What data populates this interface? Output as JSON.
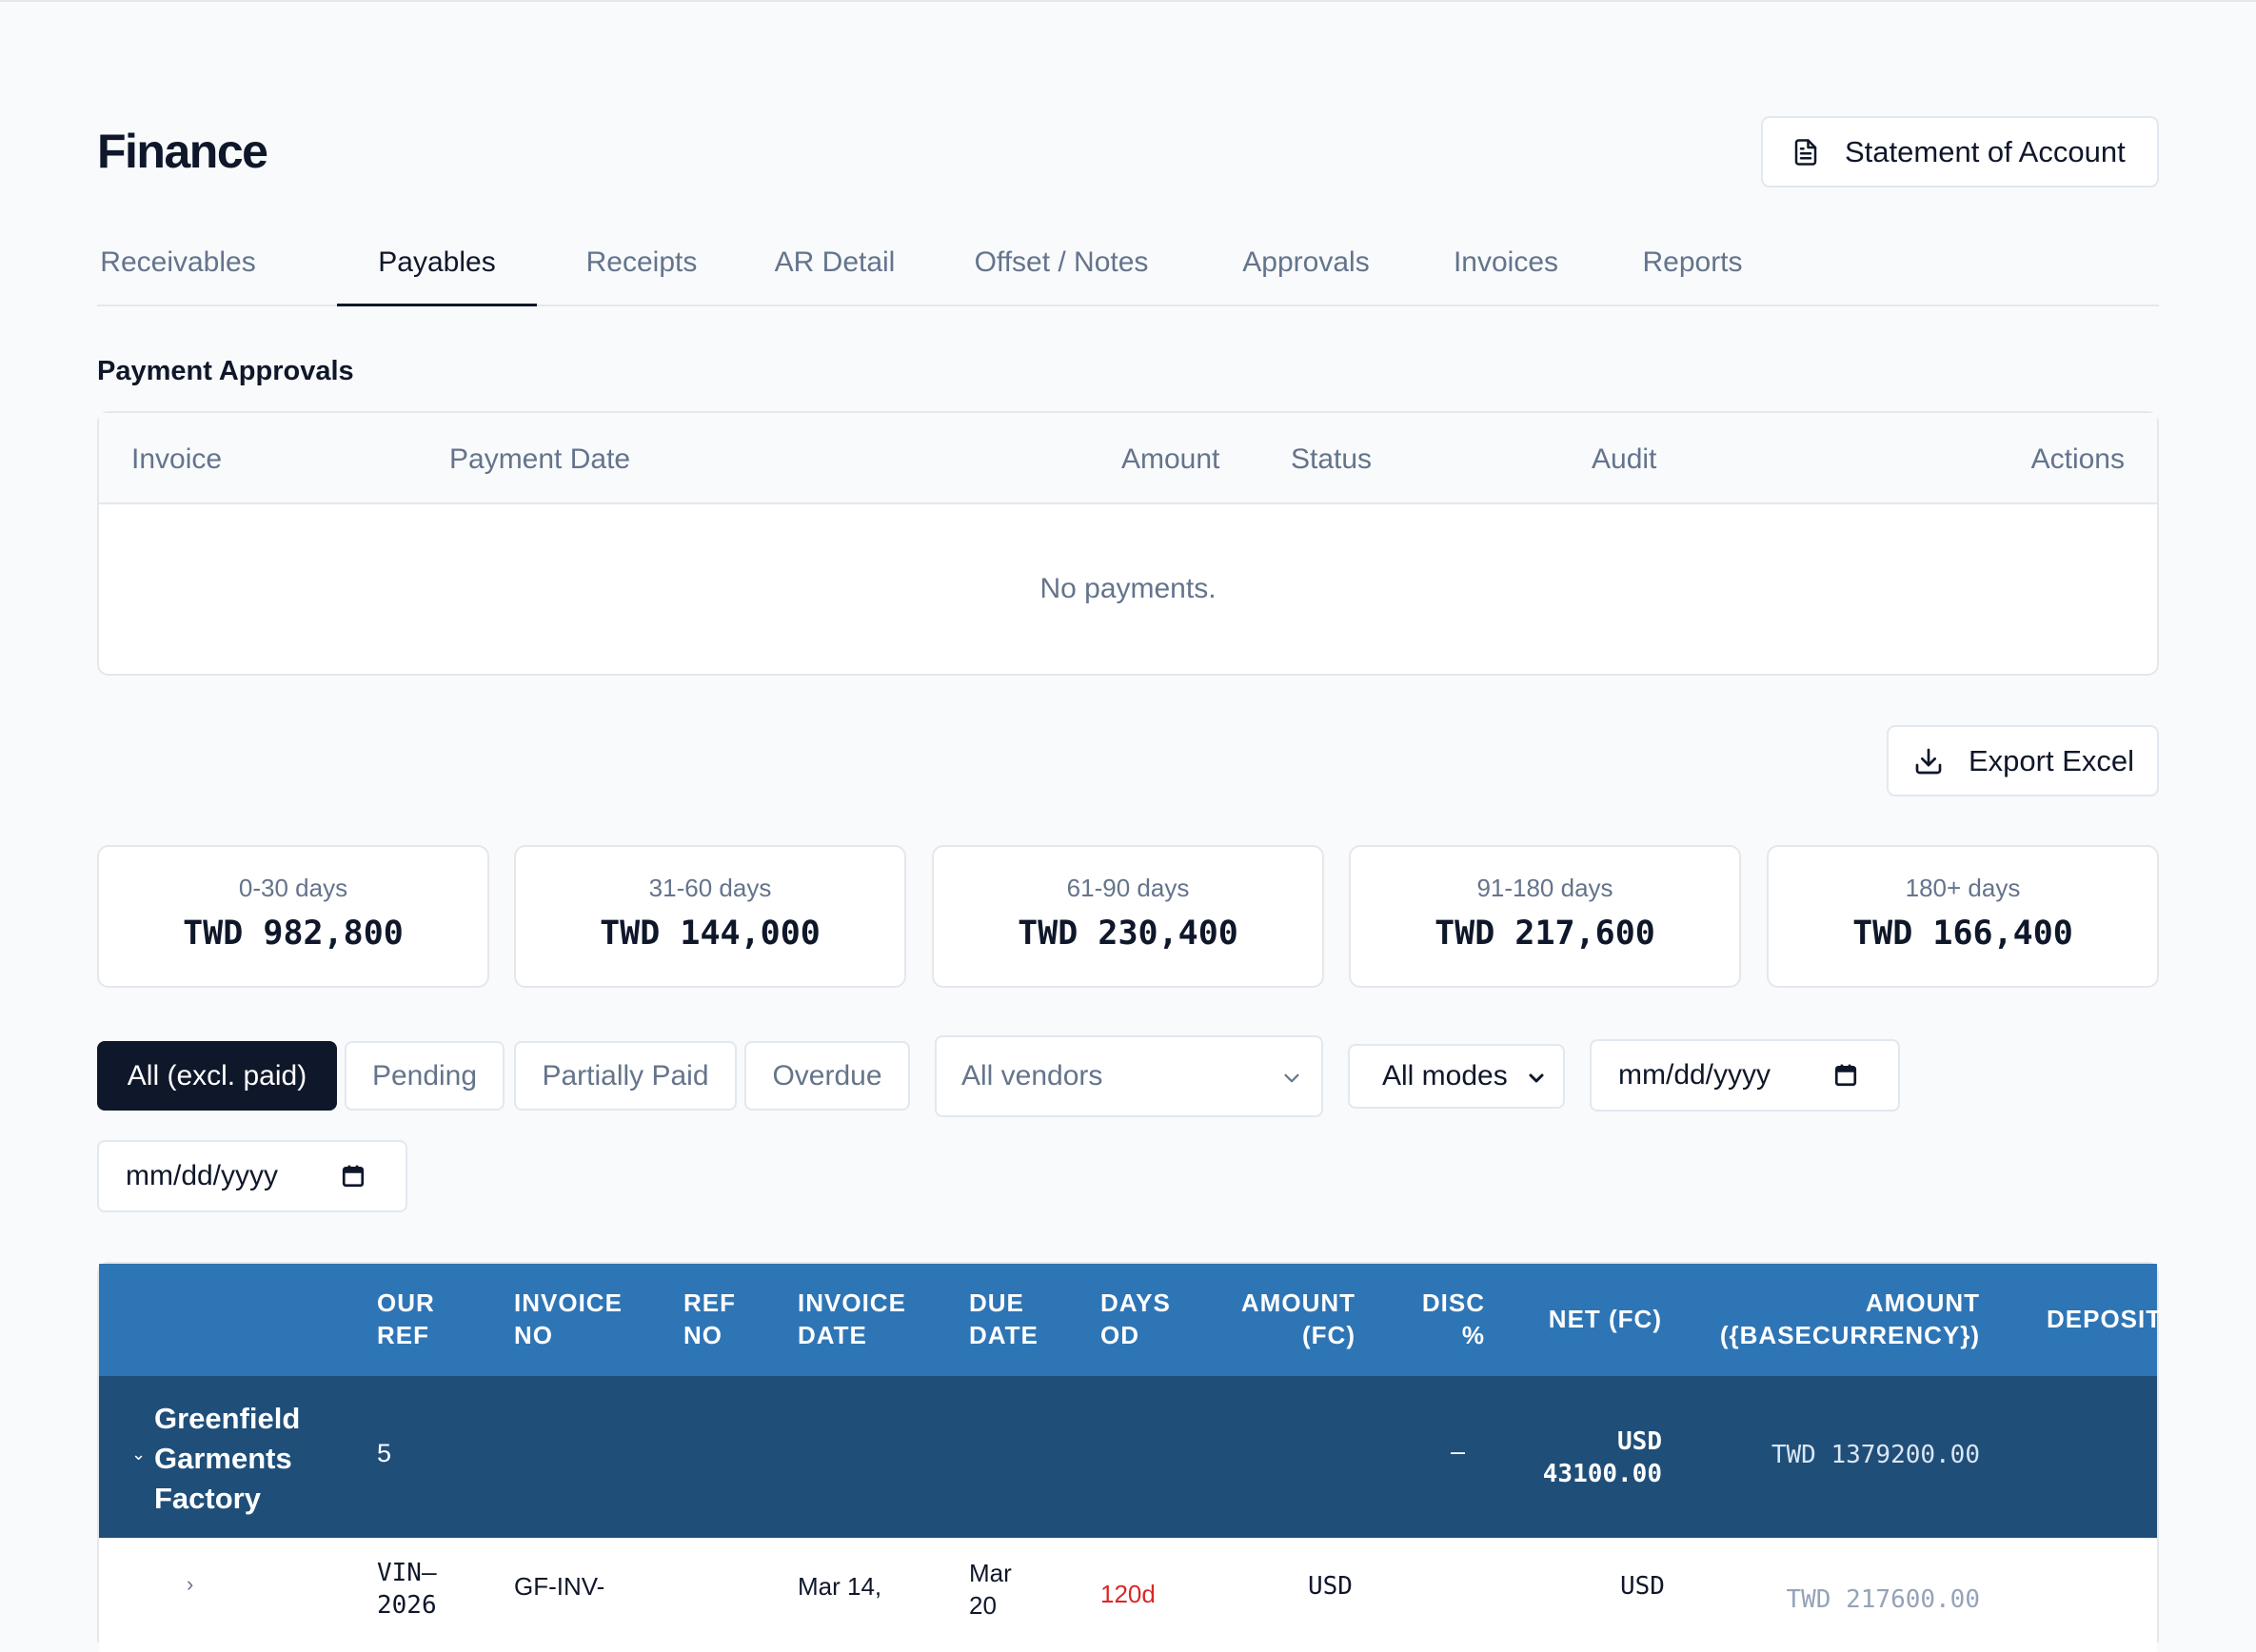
{
  "page": {
    "title": "Finance"
  },
  "header": {
    "statement_button": "Statement of Account"
  },
  "tabs": [
    {
      "label": "Receivables"
    },
    {
      "label": "Payables"
    },
    {
      "label": "Receipts"
    },
    {
      "label": "AR Detail"
    },
    {
      "label": "Offset / Notes"
    },
    {
      "label": "Approvals"
    },
    {
      "label": "Invoices"
    },
    {
      "label": "Reports"
    }
  ],
  "active_tab": "Payables",
  "payment_approvals": {
    "title": "Payment Approvals",
    "columns": [
      "Invoice",
      "Payment Date",
      "Amount",
      "Status",
      "Audit",
      "Actions"
    ],
    "empty_message": "No payments."
  },
  "export_button": "Export Excel",
  "aging_buckets": [
    {
      "label": "0-30 days",
      "value": "TWD 982,800"
    },
    {
      "label": "31-60 days",
      "value": "TWD 144,000"
    },
    {
      "label": "61-90 days",
      "value": "TWD 230,400"
    },
    {
      "label": "91-180 days",
      "value": "TWD 217,600"
    },
    {
      "label": "180+ days",
      "value": "TWD 166,400"
    }
  ],
  "filters": {
    "status_chips": [
      {
        "label": "All (excl. paid)"
      },
      {
        "label": "Pending"
      },
      {
        "label": "Partially Paid"
      },
      {
        "label": "Overdue"
      }
    ],
    "active_chip": "All (excl. paid)",
    "vendor_select": "All vendors",
    "mode_select": "All modes",
    "date_from_placeholder": "mm/dd/yyyy",
    "date_to_placeholder": "mm/dd/yyyy"
  },
  "aging_table": {
    "columns": [
      {
        "l1": "OUR",
        "l2": "REF"
      },
      {
        "l1": "INVOICE",
        "l2": "NO"
      },
      {
        "l1": "REF",
        "l2": "NO"
      },
      {
        "l1": "INVOICE",
        "l2": "DATE"
      },
      {
        "l1": "DUE",
        "l2": "DATE"
      },
      {
        "l1": "DAYS",
        "l2": "OD"
      },
      {
        "l1": "AMOUNT",
        "l2": "(FC)"
      },
      {
        "l1": "DISC",
        "l2": "%"
      },
      {
        "l1": "NET (FC)",
        "l2": ""
      },
      {
        "l1": "AMOUNT",
        "l2": "({BASECURRENCY})"
      },
      {
        "l1": "DEPOSIT",
        "l2": ""
      }
    ],
    "group": {
      "vendor_lines": [
        "Greenfield",
        "Garments",
        "Factory"
      ],
      "count": "5",
      "disc": "–",
      "net_currency": "USD",
      "net_amount": "43100.00",
      "base_amount": "TWD 1379200.00"
    },
    "first_row": {
      "our_ref_lines": [
        "VIN–",
        "2026"
      ],
      "invoice_no": "GF-INV-",
      "invoice_date": "Mar 14,",
      "due_date_lines": [
        "Mar",
        "20"
      ],
      "days_od": "120d",
      "amount_fc": "USD",
      "net_fc": "USD",
      "base_amount": "TWD 217600.00"
    }
  },
  "colors": {
    "table_header": "#2e75b6",
    "group_row": "#1f4e79",
    "primary": "#0f172a",
    "overdue": "#dc2626"
  }
}
